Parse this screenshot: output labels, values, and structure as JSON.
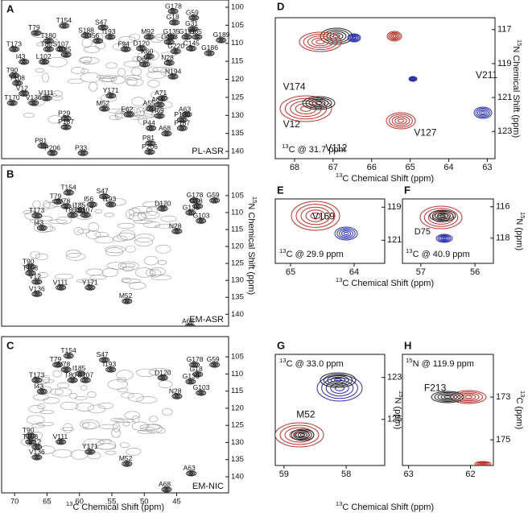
{
  "chart_data": [
    {
      "type": "contour",
      "panel": "A",
      "caption": "PL-ASR",
      "xlim": [
        72,
        37
      ],
      "ylim": [
        98,
        142
      ],
      "yticks": [
        100,
        105,
        110,
        115,
        120,
        125,
        130,
        135,
        140
      ],
      "annotations": [
        {
          "text": "G178",
          "x": 46.8,
          "y": 99.8
        },
        {
          "text": "G59",
          "x": 43.6,
          "y": 101.6
        },
        {
          "text": "S47",
          "x": 57.6,
          "y": 104.3
        },
        {
          "text": "T154",
          "x": 63.6,
          "y": 103.8
        },
        {
          "text": "G18",
          "x": 46.6,
          "y": 102.9
        },
        {
          "text": "G31",
          "x": 43.7,
          "y": 104.7
        },
        {
          "text": "T79",
          "x": 67.9,
          "y": 105.8
        },
        {
          "text": "T180",
          "x": 66.0,
          "y": 108.0
        },
        {
          "text": "S188",
          "x": 60.2,
          "y": 106.5
        },
        {
          "text": "I193",
          "x": 56.5,
          "y": 106.9
        },
        {
          "text": "G135",
          "x": 47.1,
          "y": 106.9
        },
        {
          "text": "G65",
          "x": 43.1,
          "y": 106.9
        },
        {
          "text": "T173",
          "x": 71.3,
          "y": 110.3
        },
        {
          "text": "T80",
          "x": 66.0,
          "y": 110.3
        },
        {
          "text": "S107",
          "x": 64.1,
          "y": 110.3
        },
        {
          "text": "I185",
          "x": 63.3,
          "y": 111.8
        },
        {
          "text": "I56",
          "x": 58.4,
          "y": 108.0
        },
        {
          "text": "F94",
          "x": 54.1,
          "y": 110.3
        },
        {
          "text": "M92",
          "x": 50.5,
          "y": 106.9
        },
        {
          "text": "D120",
          "x": 51.7,
          "y": 110.1
        },
        {
          "text": "G191",
          "x": 44.7,
          "y": 106.9
        },
        {
          "text": "G189",
          "x": 39.4,
          "y": 107.8
        },
        {
          "text": "G103",
          "x": 47.4,
          "y": 108.3
        },
        {
          "text": "C145",
          "x": 44.0,
          "y": 110.1
        },
        {
          "text": "G220",
          "x": 46.4,
          "y": 110.9
        },
        {
          "text": "G186",
          "x": 41.2,
          "y": 111.4
        },
        {
          "text": "K60",
          "x": 50.5,
          "y": 112.3
        },
        {
          "text": "I43",
          "x": 69.8,
          "y": 113.8
        },
        {
          "text": "L102",
          "x": 66.7,
          "y": 113.8
        },
        {
          "text": "Q66",
          "x": 51.2,
          "y": 114.5
        },
        {
          "text": "N28",
          "x": 47.4,
          "y": 114.1
        },
        {
          "text": "T90",
          "x": 71.3,
          "y": 117.6
        },
        {
          "text": "N194",
          "x": 46.8,
          "y": 117.9
        },
        {
          "text": "T108",
          "x": 70.8,
          "y": 119.7
        },
        {
          "text": "V12",
          "x": 69.8,
          "y": 122.6
        },
        {
          "text": "T170",
          "x": 71.6,
          "y": 125.2
        },
        {
          "text": "V136",
          "x": 68.3,
          "y": 125.2
        },
        {
          "text": "V111",
          "x": 66.3,
          "y": 123.9
        },
        {
          "text": "Y171",
          "x": 56.4,
          "y": 123.2
        },
        {
          "text": "A71",
          "x": 48.4,
          "y": 123.9
        },
        {
          "text": "A64",
          "x": 48.9,
          "y": 125.7
        },
        {
          "text": "A55",
          "x": 50.2,
          "y": 126.8
        },
        {
          "text": "H69",
          "x": 48.9,
          "y": 128.8
        },
        {
          "text": "E62",
          "x": 53.6,
          "y": 128.4
        },
        {
          "text": "M52",
          "x": 57.4,
          "y": 126.8
        },
        {
          "text": "A63",
          "x": 44.7,
          "y": 128.4
        },
        {
          "text": "P29",
          "x": 63.3,
          "y": 129.5
        },
        {
          "text": "P187",
          "x": 63.3,
          "y": 131.9
        },
        {
          "text": "P180",
          "x": 45.4,
          "y": 129.9
        },
        {
          "text": "P44",
          "x": 50.2,
          "y": 132.2
        },
        {
          "text": "P187",
          "x": 45.4,
          "y": 132.2
        },
        {
          "text": "A68",
          "x": 47.8,
          "y": 133.7
        },
        {
          "text": "P81",
          "x": 50.3,
          "y": 136.4
        },
        {
          "text": "P81",
          "x": 66.9,
          "y": 137.1
        },
        {
          "text": "P206",
          "x": 65.4,
          "y": 139.1
        },
        {
          "text": "P33",
          "x": 60.7,
          "y": 139.1
        },
        {
          "text": "P206",
          "x": 50.4,
          "y": 138.8
        }
      ]
    },
    {
      "type": "contour",
      "panel": "B",
      "caption": "EM-ASR",
      "xlim": [
        72,
        37
      ],
      "ylim": [
        96,
        143.5
      ],
      "yticks": [
        105,
        110,
        115,
        120,
        125,
        130,
        135,
        140
      ],
      "y_label": {
        "sup": "15",
        "text": "N Chemical Shift (ppm)"
      },
      "annotations": [
        {
          "text": "G178",
          "x": 43.5,
          "y": 105.0
        },
        {
          "text": "G59",
          "x": 40.4,
          "y": 105.0
        },
        {
          "text": "G18",
          "x": 43.0,
          "y": 106.7
        },
        {
          "text": "G135",
          "x": 44.1,
          "y": 108.6
        },
        {
          "text": "G103",
          "x": 42.5,
          "y": 111.0
        },
        {
          "text": "T154",
          "x": 62.9,
          "y": 102.7
        },
        {
          "text": "S47",
          "x": 57.4,
          "y": 103.8
        },
        {
          "text": "T79",
          "x": 64.6,
          "y": 105.3
        },
        {
          "text": "V78",
          "x": 63.3,
          "y": 106.7
        },
        {
          "text": "I56",
          "x": 59.3,
          "y": 106.2
        },
        {
          "text": "I193",
          "x": 56.4,
          "y": 106.2
        },
        {
          "text": "I185",
          "x": 61.1,
          "y": 107.9
        },
        {
          "text": "T80",
          "x": 62.3,
          "y": 109.3
        },
        {
          "text": "S107",
          "x": 60.3,
          "y": 109.3
        },
        {
          "text": "T173",
          "x": 67.8,
          "y": 109.5
        },
        {
          "text": "D120",
          "x": 48.4,
          "y": 107.4
        },
        {
          "text": "I43",
          "x": 67.0,
          "y": 113.1
        },
        {
          "text": "N28",
          "x": 46.2,
          "y": 114.1
        },
        {
          "text": "T90",
          "x": 68.8,
          "y": 124.5
        },
        {
          "text": "T108",
          "x": 68.8,
          "y": 126.4
        },
        {
          "text": "V12",
          "x": 67.8,
          "y": 129.0
        },
        {
          "text": "V111",
          "x": 64.1,
          "y": 130.7
        },
        {
          "text": "V136",
          "x": 67.8,
          "y": 132.6
        },
        {
          "text": "Y171",
          "x": 59.6,
          "y": 130.7
        },
        {
          "text": "M52",
          "x": 53.9,
          "y": 134.7
        },
        {
          "text": "A68",
          "x": 44.2,
          "y": 142.1
        }
      ]
    },
    {
      "type": "contour",
      "panel": "C",
      "caption": "EM-NIC",
      "xlim": [
        72,
        37
      ],
      "ylim": [
        99.1,
        144.7
      ],
      "xticks": [
        70,
        65,
        60,
        55,
        50,
        45
      ],
      "yticks": [
        105,
        110,
        115,
        120,
        125,
        130,
        135,
        140
      ],
      "x_label": {
        "sup": "13",
        "text": "C Chemical Shift (ppm)"
      },
      "annotations": [
        {
          "text": "G178",
          "x": 43.5,
          "y": 105.9
        },
        {
          "text": "G59",
          "x": 40.4,
          "y": 105.9
        },
        {
          "text": "G18",
          "x": 43.0,
          "y": 108.7
        },
        {
          "text": "G135",
          "x": 44.1,
          "y": 110.8
        },
        {
          "text": "G103",
          "x": 42.5,
          "y": 114.1
        },
        {
          "text": "T154",
          "x": 62.9,
          "y": 103.3
        },
        {
          "text": "S47",
          "x": 57.4,
          "y": 104.5
        },
        {
          "text": "T79",
          "x": 64.6,
          "y": 105.9
        },
        {
          "text": "V78",
          "x": 63.3,
          "y": 107.3
        },
        {
          "text": "I193",
          "x": 56.4,
          "y": 107.3
        },
        {
          "text": "I185",
          "x": 61.1,
          "y": 108.5
        },
        {
          "text": "T80",
          "x": 62.3,
          "y": 110.4
        },
        {
          "text": "S107",
          "x": 60.3,
          "y": 110.4
        },
        {
          "text": "T173",
          "x": 67.8,
          "y": 110.4
        },
        {
          "text": "I43",
          "x": 67.0,
          "y": 113.7
        },
        {
          "text": "D120",
          "x": 48.4,
          "y": 109.7
        },
        {
          "text": "N28",
          "x": 46.2,
          "y": 115.1
        },
        {
          "text": "T90",
          "x": 68.8,
          "y": 126.6
        },
        {
          "text": "T108",
          "x": 68.8,
          "y": 128.4
        },
        {
          "text": "V12",
          "x": 67.8,
          "y": 129.9
        },
        {
          "text": "V111",
          "x": 64.1,
          "y": 128.4
        },
        {
          "text": "V136",
          "x": 67.8,
          "y": 132.9
        },
        {
          "text": "Y171",
          "x": 59.6,
          "y": 131.3
        },
        {
          "text": "M52",
          "x": 53.9,
          "y": 134.8
        },
        {
          "text": "A63",
          "x": 44.0,
          "y": 137.6
        },
        {
          "text": "A68",
          "x": 47.8,
          "y": 142.3
        }
      ]
    },
    {
      "type": "contour",
      "panel": "D",
      "caption": {
        "sup": "13",
        "text": "C @ 31.7 ppm"
      },
      "xlim": [
        68.5,
        62.8
      ],
      "ylim": [
        116.3,
        124.6
      ],
      "xticks": [
        68,
        67,
        66,
        65,
        64,
        63
      ],
      "yticks": [
        117,
        119,
        121,
        123
      ],
      "x_label": {
        "sup": "13",
        "text": "C Chemical Shift (ppm)"
      },
      "y_label": {
        "sup": "15",
        "text": "N Chemical Shift (ppm)"
      },
      "annotations": [
        {
          "text": "V174",
          "x": 68.3,
          "y": 120.4
        },
        {
          "text": "V211",
          "x": 63.3,
          "y": 119.7
        },
        {
          "text": "V12",
          "x": 68.3,
          "y": 122.6
        },
        {
          "text": "V112",
          "x": 67.2,
          "y": 124.0
        },
        {
          "text": "V127",
          "x": 64.9,
          "y": 123.1
        }
      ]
    },
    {
      "type": "contour",
      "panel": "E",
      "caption": {
        "sup": "13",
        "text": "C @ 29.9 ppm"
      },
      "xlim": [
        65.24,
        63.52
      ],
      "ylim": [
        118.5,
        122.4
      ],
      "xticks": [
        65,
        64
      ],
      "yticks": [
        119,
        121
      ],
      "x_label": {
        "sup": "13",
        "text": "C Chemical Shift (ppm)"
      },
      "annotations": [
        {
          "text": "V169",
          "x": 64.66,
          "y": 119.6
        }
      ]
    },
    {
      "type": "contour",
      "panel": "F",
      "caption": {
        "sup": "13",
        "text": "C @ 40.9 ppm"
      },
      "xlim": [
        57.34,
        55.66
      ],
      "ylim": [
        115.5,
        119.6
      ],
      "xticks": [
        57,
        56
      ],
      "yticks": [
        116,
        118
      ],
      "y_label": {
        "sup": "15",
        "text": "N (ppm)"
      },
      "annotations": [
        {
          "text": "D75",
          "x": 57.12,
          "y": 117.6
        }
      ]
    },
    {
      "type": "contour",
      "panel": "G",
      "caption": {
        "sup": "13",
        "text": "C @ 33.0 ppm"
      },
      "xlim": [
        59.14,
        57.38
      ],
      "ylim": [
        121.9,
        127.2
      ],
      "xticks": [
        59,
        58
      ],
      "yticks": [
        123,
        125
      ],
      "x_label": {
        "sup": "13",
        "text": "C Chemical Shift (ppm)"
      },
      "y_label": {
        "sup": "15",
        "text": "N (ppm)"
      },
      "annotations": [
        {
          "text": "M52",
          "x": 58.8,
          "y": 124.8
        }
      ]
    },
    {
      "type": "contour",
      "panel": "H",
      "caption": {
        "sup": "15",
        "text": "N @ 119.9 ppm"
      },
      "xlim": [
        63.1,
        61.63
      ],
      "ylim": [
        171.0,
        176.2
      ],
      "xticks": [
        63,
        62
      ],
      "yticks": [
        173,
        175
      ],
      "y_label": {
        "sup": "13",
        "text": "C (ppm)"
      },
      "annotations": [
        {
          "text": "F213",
          "x": 62.75,
          "y": 172.6
        }
      ]
    }
  ]
}
